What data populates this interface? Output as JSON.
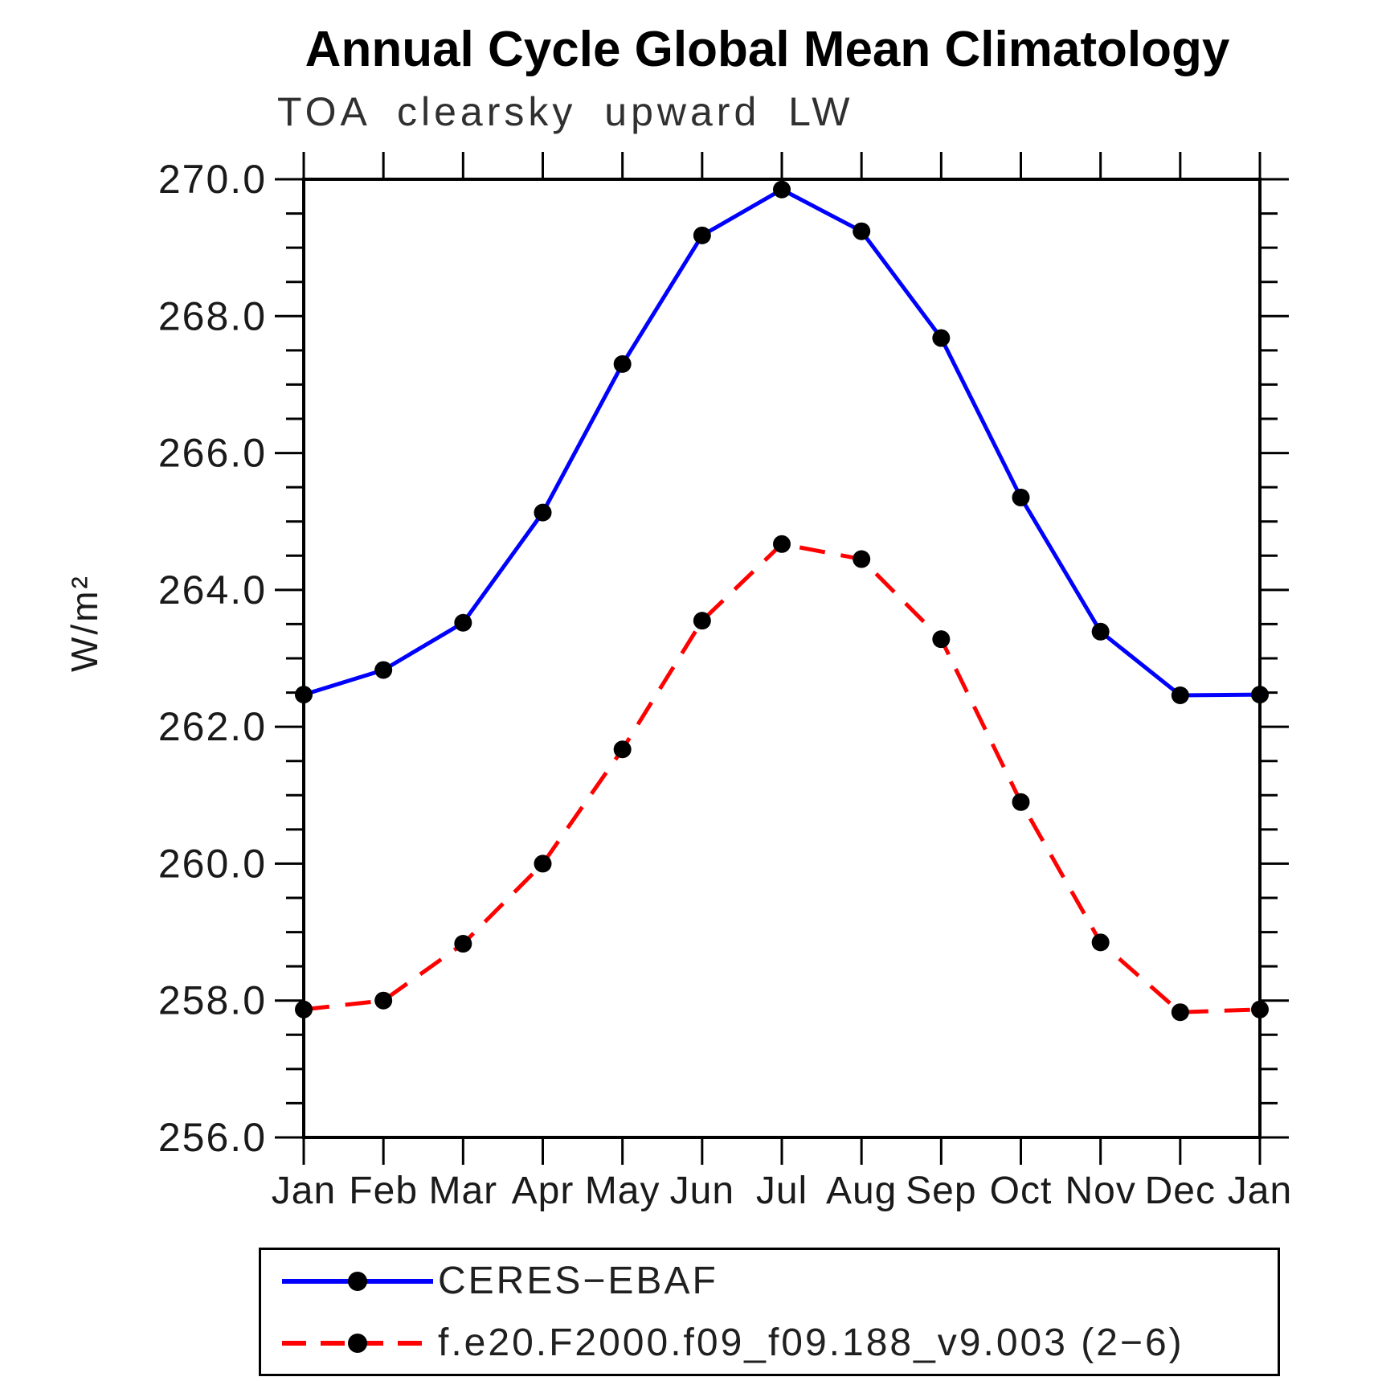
{
  "title": "Annual Cycle Global Mean Climatology",
  "subtitle": "TOA clearsky upward LW",
  "ylabel": "W/m²",
  "colors": {
    "axis": "#000000",
    "marker": "#000000",
    "series_obs": "#0000ff",
    "series_model": "#ff0000"
  },
  "legend": {
    "position": "bottom",
    "entries": [
      {
        "label": "CERES−EBAF",
        "line_style": "solid",
        "color": "#0000ff",
        "marker": "black-dot"
      },
      {
        "label": "f.e20.F2000.f09_f09.188_v9.003 (2−6)",
        "line_style": "dashed",
        "color": "#ff0000",
        "marker": "black-dot"
      }
    ]
  },
  "chart_data": {
    "type": "line",
    "title": "Annual Cycle Global Mean Climatology",
    "subtitle": "TOA clearsky upward LW",
    "xlabel": "",
    "ylabel": "W/m²",
    "x_categories": [
      "Jan",
      "Feb",
      "Mar",
      "Apr",
      "May",
      "Jun",
      "Jul",
      "Aug",
      "Sep",
      "Oct",
      "Nov",
      "Dec",
      "Jan"
    ],
    "ylim": [
      256.0,
      270.0
    ],
    "ytick_major": 2.0,
    "ytick_minor": 0.5,
    "ytick_labels": [
      "256.0",
      "258.0",
      "260.0",
      "262.0",
      "264.0",
      "266.0",
      "268.0",
      "270.0"
    ],
    "grid": false,
    "legend_position": "bottom",
    "series": [
      {
        "name": "CERES−EBAF",
        "color": "#0000ff",
        "line_style": "solid",
        "marker": "circle",
        "marker_color": "#000000",
        "values": [
          262.47,
          262.83,
          263.52,
          265.13,
          267.3,
          269.18,
          269.85,
          269.24,
          267.68,
          265.35,
          263.39,
          262.46,
          262.47
        ]
      },
      {
        "name": "f.e20.F2000.f09_f09.188_v9.003 (2−6)",
        "color": "#ff0000",
        "line_style": "dashed",
        "marker": "circle",
        "marker_color": "#000000",
        "values": [
          257.87,
          258.0,
          258.83,
          260.0,
          261.67,
          263.55,
          264.67,
          264.45,
          263.28,
          260.9,
          258.85,
          257.83,
          257.87
        ]
      }
    ]
  }
}
